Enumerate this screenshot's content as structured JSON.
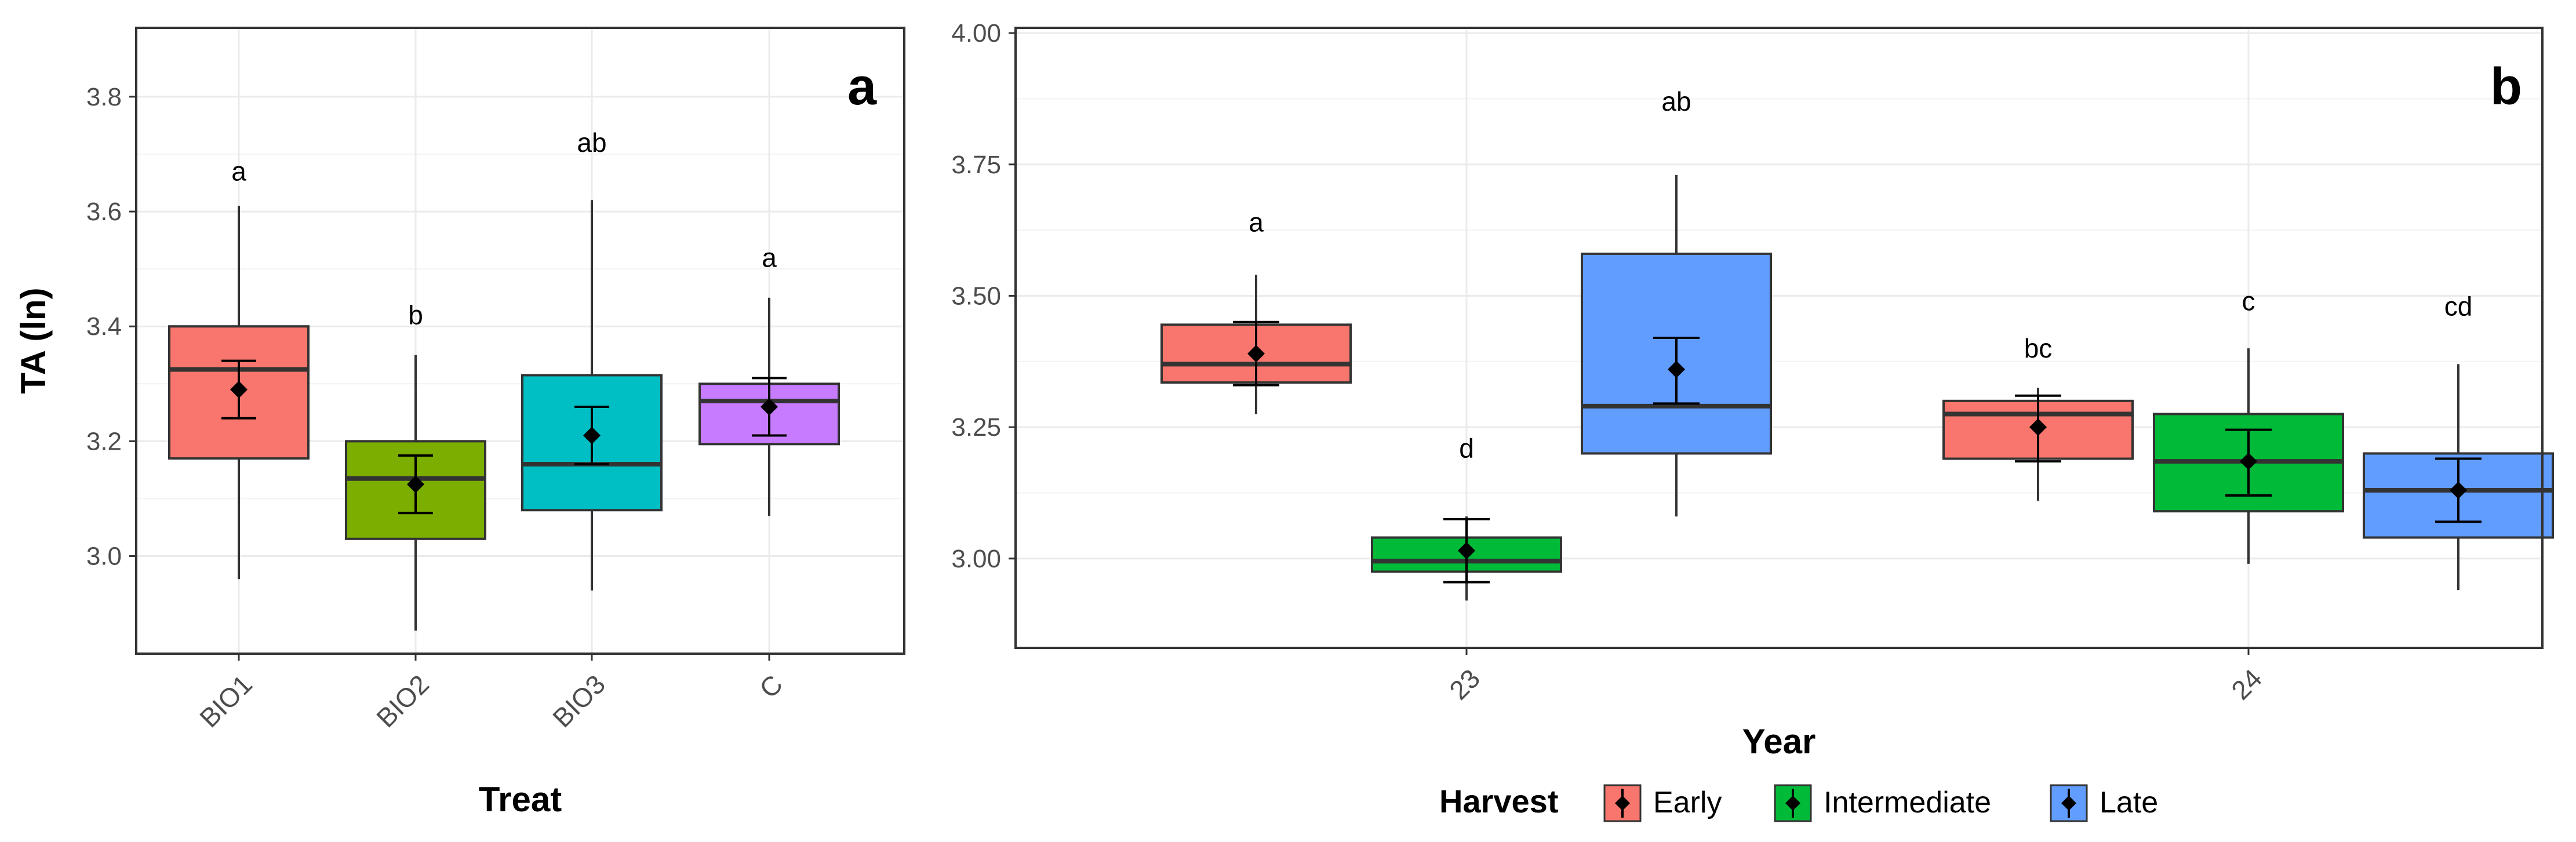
{
  "colors": {
    "Early": "#f8766d",
    "Intermediate": "#00ba38",
    "Late": "#619cff",
    "BIO1": "#f8766d",
    "BIO2": "#7cae00",
    "BIO3": "#00bfc4",
    "C": "#c77cff",
    "grid": "#ebebeb",
    "frame": "#333333",
    "tick_text": "#4d4d4d"
  },
  "chart_data": [
    {
      "type": "box",
      "panel_label": "a",
      "xlabel": "Treat",
      "ylabel": "TA (ln)",
      "ylim": [
        2.83,
        3.92
      ],
      "yticks": [
        3.0,
        3.2,
        3.4,
        3.6,
        3.8
      ],
      "ytick_labels": [
        "3.0",
        "3.2",
        "3.4",
        "3.6",
        "3.8"
      ],
      "categories": [
        "BIO1",
        "BIO2",
        "BIO3",
        "C"
      ],
      "boxes": [
        {
          "category": "BIO1",
          "color_key": "BIO1",
          "min": 2.96,
          "q1": 3.17,
          "median": 3.325,
          "q3": 3.4,
          "max": 3.61,
          "mean": 3.29,
          "mean_low": 3.24,
          "mean_high": 3.34,
          "letter": "a",
          "letter_y": 3.67
        },
        {
          "category": "BIO2",
          "color_key": "BIO2",
          "min": 2.87,
          "q1": 3.03,
          "median": 3.135,
          "q3": 3.2,
          "max": 3.35,
          "mean": 3.125,
          "mean_low": 3.075,
          "mean_high": 3.175,
          "letter": "b",
          "letter_y": 3.42
        },
        {
          "category": "BIO3",
          "color_key": "BIO3",
          "min": 2.94,
          "q1": 3.08,
          "median": 3.16,
          "q3": 3.315,
          "max": 3.62,
          "mean": 3.21,
          "mean_low": 3.16,
          "mean_high": 3.26,
          "letter": "ab",
          "letter_y": 3.72
        },
        {
          "category": "C",
          "color_key": "C",
          "min": 3.07,
          "q1": 3.195,
          "median": 3.27,
          "q3": 3.3,
          "max": 3.45,
          "mean": 3.26,
          "mean_low": 3.21,
          "mean_high": 3.31,
          "letter": "a",
          "letter_y": 3.52
        }
      ]
    },
    {
      "type": "box",
      "panel_label": "b",
      "xlabel": "Year",
      "ylabel": "",
      "ylim": [
        2.83,
        4.01
      ],
      "yticks": [
        3.0,
        3.25,
        3.5,
        3.75,
        4.0
      ],
      "ytick_labels": [
        "3.00",
        "3.25",
        "3.50",
        "3.75",
        "4.00"
      ],
      "categories": [
        "23",
        "24"
      ],
      "legend": {
        "title": "Harvest",
        "entries": [
          "Early",
          "Intermediate",
          "Late"
        ],
        "position": "bottom"
      },
      "boxes": [
        {
          "category": "23",
          "group": "Early",
          "color_key": "Early",
          "min": 3.275,
          "q1": 3.335,
          "median": 3.37,
          "q3": 3.445,
          "max": 3.54,
          "mean": 3.39,
          "mean_low": 3.33,
          "mean_high": 3.45,
          "letter": "a",
          "letter_y": 3.64
        },
        {
          "category": "23",
          "group": "Intermediate",
          "color_key": "Intermediate",
          "min": 2.92,
          "q1": 2.975,
          "median": 2.995,
          "q3": 3.04,
          "max": 3.08,
          "mean": 3.015,
          "mean_low": 2.955,
          "mean_high": 3.075,
          "letter": "d",
          "letter_y": 3.21
        },
        {
          "category": "23",
          "group": "Late",
          "color_key": "Late",
          "min": 3.08,
          "q1": 3.2,
          "median": 3.29,
          "q3": 3.58,
          "max": 3.73,
          "mean": 3.36,
          "mean_low": 3.295,
          "mean_high": 3.42,
          "letter": "ab",
          "letter_y": 3.87
        },
        {
          "category": "24",
          "group": "Early",
          "color_key": "Early",
          "min": 3.11,
          "q1": 3.19,
          "median": 3.275,
          "q3": 3.3,
          "max": 3.325,
          "mean": 3.25,
          "mean_low": 3.185,
          "mean_high": 3.31,
          "letter": "bc",
          "letter_y": 3.4
        },
        {
          "category": "24",
          "group": "Intermediate",
          "color_key": "Intermediate",
          "min": 2.99,
          "q1": 3.09,
          "median": 3.185,
          "q3": 3.275,
          "max": 3.4,
          "mean": 3.185,
          "mean_low": 3.12,
          "mean_high": 3.245,
          "letter": "c",
          "letter_y": 3.49
        },
        {
          "category": "24",
          "group": "Late",
          "color_key": "Late",
          "min": 2.94,
          "q1": 3.04,
          "median": 3.13,
          "q3": 3.2,
          "max": 3.37,
          "mean": 3.13,
          "mean_low": 3.07,
          "mean_high": 3.19,
          "letter": "cd",
          "letter_y": 3.48
        }
      ]
    }
  ]
}
